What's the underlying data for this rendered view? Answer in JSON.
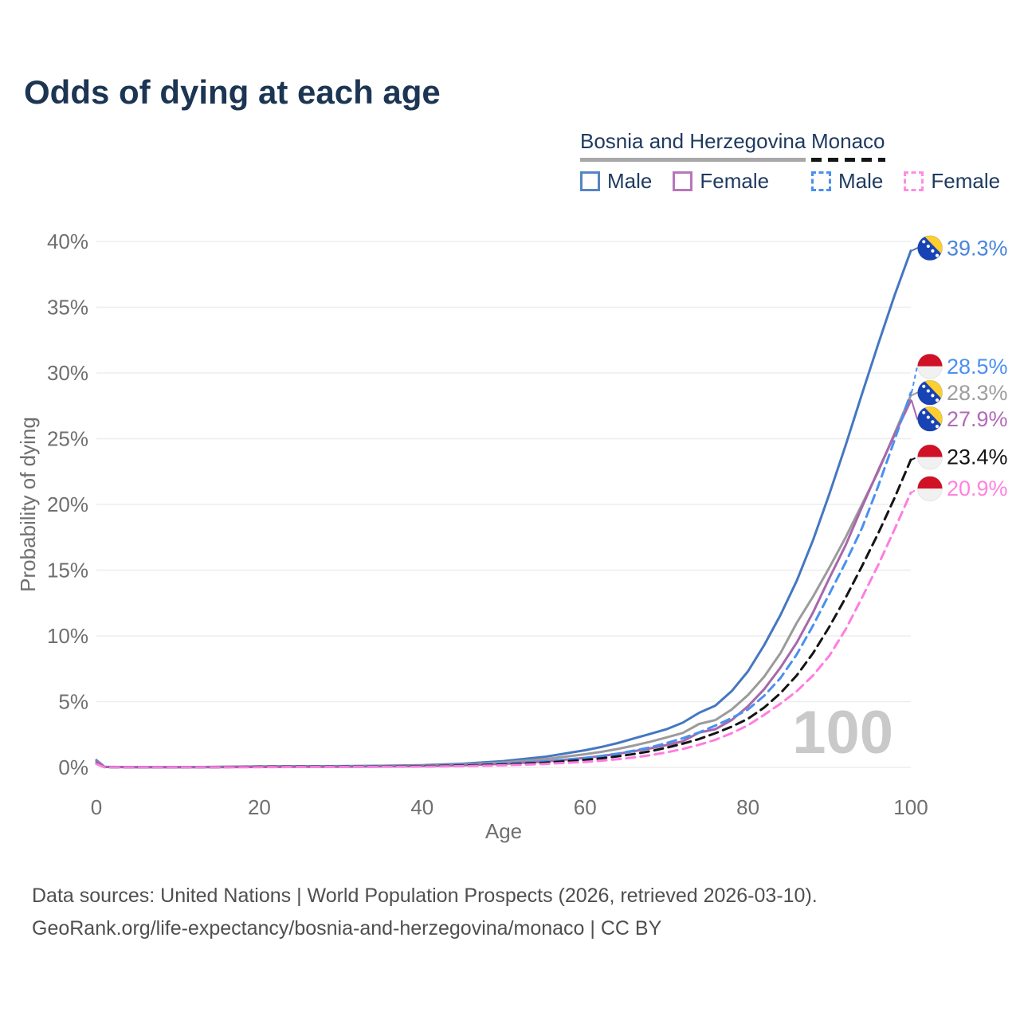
{
  "title": "Odds of dying at each age",
  "legend": {
    "groups": [
      {
        "title": "Bosnia and Herzegovina",
        "underline_style": "solid",
        "underline_color": "#a8a8a8",
        "items": [
          {
            "label": "Male",
            "color": "#5585c2",
            "line_style": "solid"
          },
          {
            "label": "Female",
            "color": "#b876ba",
            "line_style": "solid"
          }
        ]
      },
      {
        "title": "Monaco",
        "underline_style": "dashed",
        "underline_color": "#151515",
        "items": [
          {
            "label": "Male",
            "color": "#4a90f0",
            "line_style": "dashed"
          },
          {
            "label": "Female",
            "color": "#ff8ce4",
            "line_style": "dashed"
          }
        ]
      }
    ]
  },
  "chart_data": {
    "type": "line",
    "title": "Odds of dying at each age",
    "xlabel": "Age",
    "ylabel": "Probability of dying",
    "xlim": [
      0,
      100
    ],
    "ylim": [
      0,
      40
    ],
    "grid": "horizontal",
    "grid_color": "#ededed",
    "axis_text_color": "#6f6f6f",
    "watermark": "100",
    "watermark_color": "#c9c9c9",
    "x_ticks": [
      {
        "v": 0,
        "label": "0"
      },
      {
        "v": 20,
        "label": "20"
      },
      {
        "v": 40,
        "label": "40"
      },
      {
        "v": 60,
        "label": "60"
      },
      {
        "v": 80,
        "label": "80"
      },
      {
        "v": 100,
        "label": "100"
      }
    ],
    "y_ticks": [
      {
        "v": 0,
        "label": "0%"
      },
      {
        "v": 5,
        "label": "5%"
      },
      {
        "v": 10,
        "label": "10%"
      },
      {
        "v": 15,
        "label": "15%"
      },
      {
        "v": 20,
        "label": "20%"
      },
      {
        "v": 25,
        "label": "25%"
      },
      {
        "v": 30,
        "label": "30%"
      },
      {
        "v": 35,
        "label": "35%"
      },
      {
        "v": 40,
        "label": "40%"
      }
    ],
    "ages": [
      0,
      1,
      5,
      10,
      15,
      20,
      25,
      30,
      35,
      40,
      45,
      50,
      55,
      60,
      62,
      64,
      66,
      68,
      70,
      72,
      74,
      76,
      78,
      80,
      82,
      84,
      86,
      88,
      90,
      92,
      94,
      96,
      98,
      100
    ],
    "series": [
      {
        "id": "ba-male",
        "country": "Bosnia and Herzegovina",
        "sex": "Male",
        "style": "solid",
        "color": "#4577c1",
        "label_color": "#4b86dc",
        "flag": "bosnia",
        "end_label": "39.3%",
        "end_value": 39.3,
        "label_y_pct": 39.5,
        "values": [
          0.55,
          0.04,
          0.02,
          0.02,
          0.04,
          0.08,
          0.09,
          0.1,
          0.12,
          0.17,
          0.28,
          0.48,
          0.8,
          1.3,
          1.55,
          1.85,
          2.2,
          2.55,
          2.9,
          3.4,
          4.15,
          4.7,
          5.8,
          7.3,
          9.3,
          11.6,
          14.2,
          17.3,
          20.8,
          24.5,
          28.4,
          32.2,
          35.9,
          39.3
        ]
      },
      {
        "id": "ba-all",
        "country": "Bosnia and Herzegovina",
        "sex": "Both sexes",
        "style": "solid",
        "color": "#9b9b9b",
        "label_color": "#9e9e9e",
        "flag": "bosnia",
        "end_label": "28.3%",
        "end_value": 28.3,
        "label_y_pct": 28.5,
        "values": [
          0.5,
          0.03,
          0.02,
          0.02,
          0.03,
          0.06,
          0.07,
          0.08,
          0.1,
          0.14,
          0.22,
          0.37,
          0.62,
          1.0,
          1.18,
          1.4,
          1.66,
          1.95,
          2.28,
          2.62,
          3.3,
          3.6,
          4.4,
          5.5,
          6.9,
          8.7,
          11.0,
          13.0,
          15.2,
          17.5,
          20.0,
          22.5,
          25.4,
          28.3
        ]
      },
      {
        "id": "ba-female",
        "country": "Bosnia and Herzegovina",
        "sex": "Female",
        "style": "solid",
        "color": "#a867ab",
        "label_color": "#b16ab8",
        "flag": "bosnia",
        "end_label": "27.9%",
        "end_value": 27.9,
        "label_y_pct": 26.5,
        "values": [
          0.45,
          0.03,
          0.01,
          0.01,
          0.02,
          0.03,
          0.04,
          0.05,
          0.07,
          0.1,
          0.16,
          0.27,
          0.45,
          0.72,
          0.86,
          1.03,
          1.23,
          1.45,
          1.7,
          1.98,
          2.65,
          2.9,
          3.6,
          4.65,
          5.95,
          7.6,
          9.5,
          11.8,
          14.4,
          16.9,
          19.8,
          22.6,
          25.3,
          27.9
        ]
      },
      {
        "id": "mc-male",
        "country": "Monaco",
        "sex": "Male",
        "style": "dashed",
        "color": "#4a90f0",
        "label_color": "#4a90f0",
        "flag": "monaco",
        "end_label": "28.5%",
        "end_value": 28.5,
        "label_y_pct": 30.5,
        "values": [
          0.3,
          0.02,
          0.01,
          0.01,
          0.02,
          0.05,
          0.06,
          0.06,
          0.08,
          0.11,
          0.17,
          0.28,
          0.45,
          0.72,
          0.87,
          1.05,
          1.27,
          1.53,
          1.85,
          2.22,
          2.66,
          3.18,
          3.75,
          4.4,
          5.45,
          6.8,
          8.6,
          10.8,
          13.2,
          15.6,
          18.2,
          21.4,
          24.9,
          28.5
        ]
      },
      {
        "id": "mc-all",
        "country": "Monaco",
        "sex": "Both sexes",
        "style": "dashed",
        "color": "#141414",
        "label_color": "#141414",
        "flag": "monaco",
        "end_label": "23.4%",
        "end_value": 23.4,
        "label_y_pct": 23.6,
        "values": [
          0.28,
          0.02,
          0.01,
          0.01,
          0.02,
          0.04,
          0.04,
          0.05,
          0.06,
          0.09,
          0.14,
          0.22,
          0.36,
          0.57,
          0.69,
          0.84,
          1.02,
          1.23,
          1.5,
          1.8,
          2.16,
          2.6,
          3.1,
          3.7,
          4.55,
          5.65,
          7.0,
          8.7,
          10.7,
          12.9,
          15.3,
          17.8,
          20.5,
          23.4
        ]
      },
      {
        "id": "mc-female",
        "country": "Monaco",
        "sex": "Female",
        "style": "dashed",
        "color": "#ff7de0",
        "label_color": "#ff82df",
        "flag": "monaco",
        "end_label": "20.9%",
        "end_value": 20.9,
        "label_y_pct": 21.2,
        "values": [
          0.26,
          0.02,
          0.01,
          0.01,
          0.01,
          0.02,
          0.03,
          0.03,
          0.04,
          0.06,
          0.1,
          0.16,
          0.26,
          0.42,
          0.51,
          0.62,
          0.76,
          0.93,
          1.14,
          1.4,
          1.72,
          2.1,
          2.6,
          3.2,
          4.0,
          4.85,
          5.8,
          7.0,
          8.5,
          10.5,
          12.9,
          15.4,
          18.1,
          20.9
        ]
      }
    ],
    "flag_colors": {
      "bosnia_blue": "#1843b5",
      "bosnia_yellow": "#fece2f",
      "bosnia_star": "#ffffff",
      "monaco_red": "#d01126",
      "monaco_white": "#f1f1f1"
    }
  },
  "footer": {
    "line1": "Data sources: United Nations | World Population Prospects (2026, retrieved 2026-03-10).",
    "line2": "GeoRank.org/life-expectancy/bosnia-and-herzegovina/monaco | CC BY"
  }
}
